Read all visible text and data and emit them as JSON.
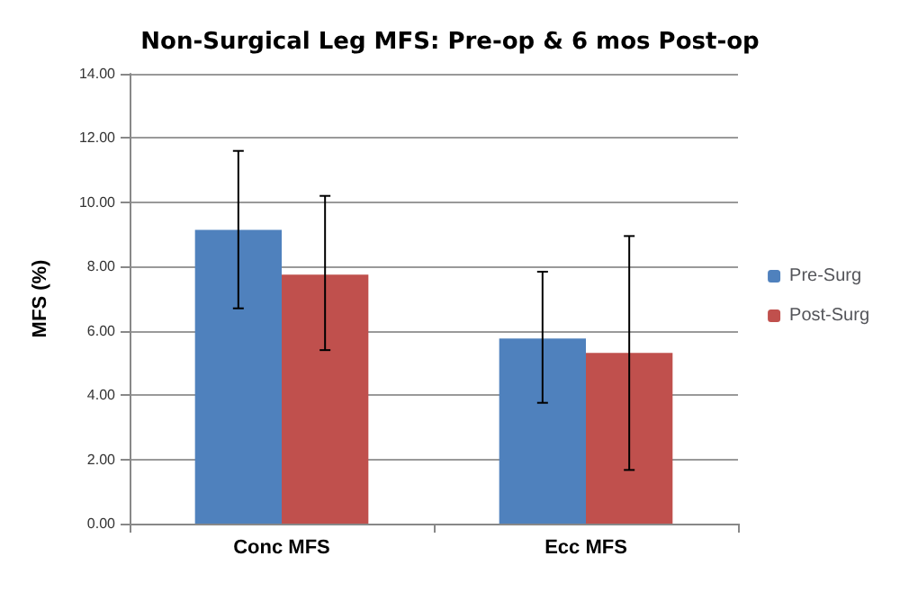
{
  "chart_data": {
    "type": "bar",
    "title": "Non-Surgical Leg MFS: Pre-op & 6 mos Post-op",
    "ylabel": "MFS (%)",
    "categories": [
      "Conc MFS",
      "Ecc MFS"
    ],
    "series": [
      {
        "name": "Pre-Surg",
        "color": "#4f81bd",
        "values": [
          9.14,
          5.76
        ],
        "errors": [
          [
            6.7,
            11.6
          ],
          [
            3.76,
            7.84
          ]
        ]
      },
      {
        "name": "Post-Surg",
        "color": "#c0504d",
        "values": [
          7.75,
          5.31
        ],
        "errors": [
          [
            5.4,
            10.2
          ],
          [
            1.67,
            8.95
          ]
        ]
      }
    ],
    "ylim": [
      0,
      14
    ],
    "yticks": [
      {
        "value": 0,
        "label": "0.00"
      },
      {
        "value": 2,
        "label": "2.00"
      },
      {
        "value": 4,
        "label": "4.00"
      },
      {
        "value": 6,
        "label": "6.00"
      },
      {
        "value": 8,
        "label": "8.00"
      },
      {
        "value": 10,
        "label": "10.00"
      },
      {
        "value": 12,
        "label": "12.00"
      },
      {
        "value": 14,
        "label": "14.00"
      }
    ],
    "grid": "y",
    "legend": "right"
  }
}
